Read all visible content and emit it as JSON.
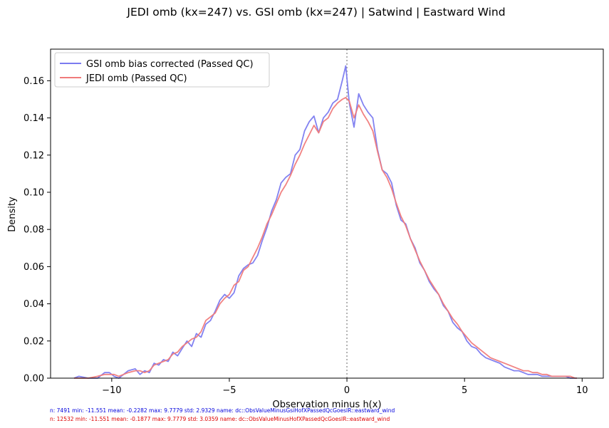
{
  "chart_data": {
    "type": "line",
    "title": "JEDI omb (kx=247) vs. GSI omb (kx=247) | Satwind | Eastward Wind",
    "xlabel": "Observation minus h(x)",
    "ylabel": "Density",
    "xlim": [
      -12.6,
      10.9
    ],
    "ylim": [
      0,
      0.177
    ],
    "xticks": [
      -10,
      -5,
      0,
      5,
      10
    ],
    "xtick_labels": [
      "−10",
      "−5",
      "0",
      "5",
      "10"
    ],
    "yticks": [
      0,
      0.02,
      0.04,
      0.06,
      0.08,
      0.1,
      0.12,
      0.14,
      0.16
    ],
    "ytick_labels": [
      "0.00",
      "0.02",
      "0.04",
      "0.06",
      "0.08",
      "0.10",
      "0.12",
      "0.14",
      "0.16"
    ],
    "vline": {
      "x": 0,
      "style": "dotted",
      "color": "#999999"
    },
    "legend_position": "upper-left",
    "series": [
      {
        "name": "GSI omb bias corrected (Passed QC)",
        "color": "#7b7bf0",
        "x": [
          -11.6,
          -11.4,
          -11.0,
          -10.6,
          -10.3,
          -10.1,
          -9.9,
          -9.7,
          -9.5,
          -9.3,
          -9.0,
          -8.8,
          -8.6,
          -8.4,
          -8.2,
          -8.0,
          -7.8,
          -7.6,
          -7.4,
          -7.2,
          -7.0,
          -6.8,
          -6.6,
          -6.4,
          -6.2,
          -6.0,
          -5.8,
          -5.6,
          -5.4,
          -5.2,
          -5.0,
          -4.8,
          -4.6,
          -4.4,
          -4.2,
          -4.0,
          -3.8,
          -3.6,
          -3.4,
          -3.2,
          -3.0,
          -2.8,
          -2.6,
          -2.4,
          -2.2,
          -2.0,
          -1.8,
          -1.6,
          -1.4,
          -1.2,
          -1.0,
          -0.8,
          -0.6,
          -0.4,
          -0.2,
          -0.05,
          0.1,
          0.3,
          0.5,
          0.7,
          0.9,
          1.1,
          1.3,
          1.5,
          1.7,
          1.9,
          2.1,
          2.3,
          2.5,
          2.7,
          2.9,
          3.1,
          3.3,
          3.5,
          3.7,
          3.9,
          4.1,
          4.3,
          4.5,
          4.7,
          4.9,
          5.1,
          5.3,
          5.5,
          5.7,
          5.9,
          6.1,
          6.3,
          6.5,
          6.7,
          6.9,
          7.1,
          7.3,
          7.5,
          7.7,
          7.9,
          8.1,
          8.3,
          8.5,
          8.7,
          8.9,
          9.1,
          9.3,
          9.5,
          9.7,
          9.78
        ],
        "y": [
          0.0,
          0.001,
          0.0,
          0.0,
          0.003,
          0.003,
          0.001,
          0.0,
          0.002,
          0.004,
          0.005,
          0.002,
          0.004,
          0.003,
          0.008,
          0.007,
          0.01,
          0.009,
          0.014,
          0.012,
          0.016,
          0.02,
          0.017,
          0.024,
          0.022,
          0.029,
          0.031,
          0.036,
          0.042,
          0.045,
          0.043,
          0.046,
          0.055,
          0.059,
          0.061,
          0.062,
          0.066,
          0.074,
          0.081,
          0.09,
          0.096,
          0.105,
          0.108,
          0.11,
          0.12,
          0.123,
          0.133,
          0.138,
          0.141,
          0.132,
          0.14,
          0.143,
          0.148,
          0.15,
          0.16,
          0.168,
          0.148,
          0.135,
          0.153,
          0.147,
          0.143,
          0.14,
          0.123,
          0.112,
          0.11,
          0.105,
          0.093,
          0.085,
          0.083,
          0.075,
          0.07,
          0.062,
          0.058,
          0.052,
          0.048,
          0.045,
          0.039,
          0.036,
          0.03,
          0.027,
          0.025,
          0.02,
          0.017,
          0.016,
          0.013,
          0.011,
          0.01,
          0.009,
          0.008,
          0.006,
          0.005,
          0.004,
          0.004,
          0.003,
          0.002,
          0.002,
          0.002,
          0.001,
          0.001,
          0.001,
          0.001,
          0.001,
          0.001,
          0.0,
          0.0,
          0.0
        ]
      },
      {
        "name": "JEDI omb (Passed QC)",
        "color": "#f07b7b",
        "x": [
          -11.6,
          -11.4,
          -11.0,
          -10.6,
          -10.3,
          -10.1,
          -9.9,
          -9.7,
          -9.5,
          -9.3,
          -9.0,
          -8.8,
          -8.6,
          -8.4,
          -8.2,
          -8.0,
          -7.8,
          -7.6,
          -7.4,
          -7.2,
          -7.0,
          -6.8,
          -6.6,
          -6.4,
          -6.2,
          -6.0,
          -5.8,
          -5.6,
          -5.4,
          -5.2,
          -5.0,
          -4.8,
          -4.6,
          -4.4,
          -4.2,
          -4.0,
          -3.8,
          -3.6,
          -3.4,
          -3.2,
          -3.0,
          -2.8,
          -2.6,
          -2.4,
          -2.2,
          -2.0,
          -1.8,
          -1.6,
          -1.4,
          -1.2,
          -1.0,
          -0.8,
          -0.6,
          -0.4,
          -0.2,
          -0.05,
          0.1,
          0.3,
          0.5,
          0.7,
          0.9,
          1.1,
          1.3,
          1.5,
          1.7,
          1.9,
          2.1,
          2.3,
          2.5,
          2.7,
          2.9,
          3.1,
          3.3,
          3.5,
          3.7,
          3.9,
          4.1,
          4.3,
          4.5,
          4.7,
          4.9,
          5.1,
          5.3,
          5.5,
          5.7,
          5.9,
          6.1,
          6.3,
          6.5,
          6.7,
          6.9,
          7.1,
          7.3,
          7.5,
          7.7,
          7.9,
          8.1,
          8.3,
          8.5,
          8.7,
          8.9,
          9.1,
          9.3,
          9.5,
          9.7,
          9.78
        ],
        "y": [
          0.0,
          0.0,
          0.0,
          0.001,
          0.002,
          0.002,
          0.002,
          0.001,
          0.002,
          0.003,
          0.004,
          0.004,
          0.003,
          0.004,
          0.007,
          0.008,
          0.009,
          0.01,
          0.013,
          0.014,
          0.017,
          0.019,
          0.021,
          0.022,
          0.025,
          0.031,
          0.033,
          0.035,
          0.04,
          0.043,
          0.045,
          0.05,
          0.052,
          0.058,
          0.06,
          0.065,
          0.07,
          0.076,
          0.083,
          0.088,
          0.094,
          0.1,
          0.104,
          0.109,
          0.115,
          0.12,
          0.126,
          0.131,
          0.136,
          0.132,
          0.138,
          0.14,
          0.145,
          0.148,
          0.15,
          0.151,
          0.149,
          0.14,
          0.147,
          0.142,
          0.138,
          0.133,
          0.122,
          0.112,
          0.108,
          0.102,
          0.094,
          0.087,
          0.082,
          0.075,
          0.069,
          0.063,
          0.058,
          0.053,
          0.049,
          0.045,
          0.04,
          0.036,
          0.032,
          0.029,
          0.025,
          0.022,
          0.019,
          0.017,
          0.015,
          0.013,
          0.011,
          0.01,
          0.009,
          0.008,
          0.007,
          0.006,
          0.005,
          0.004,
          0.004,
          0.003,
          0.003,
          0.002,
          0.002,
          0.001,
          0.001,
          0.001,
          0.001,
          0.001,
          0.0,
          0.0
        ]
      }
    ]
  },
  "stats": [
    {
      "text": "n: 7491     min: -11.551     mean: -0.2282     max: 9.7779     std: 2.9329     name: dc::ObsValueMinusGsiHofXPassedQcGoesIR::eastward_wind",
      "color": "#0000dd"
    },
    {
      "text": "n: 12532     min: -11.551     mean: -0.1877     max: 9.7779     std: 3.0359     name: dc::ObsValueMinusHofXPassedQcGoesIR::eastward_wind",
      "color": "#dd0000"
    }
  ]
}
